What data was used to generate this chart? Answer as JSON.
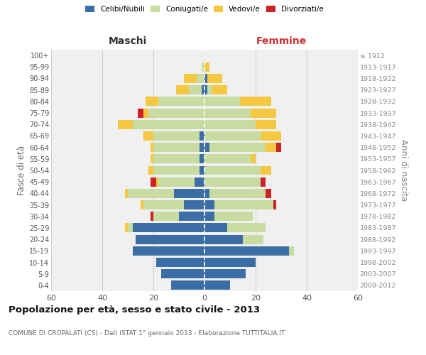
{
  "age_groups": [
    "0-4",
    "5-9",
    "10-14",
    "15-19",
    "20-24",
    "25-29",
    "30-34",
    "35-39",
    "40-44",
    "45-49",
    "50-54",
    "55-59",
    "60-64",
    "65-69",
    "70-74",
    "75-79",
    "80-84",
    "85-89",
    "90-94",
    "95-99",
    "100+"
  ],
  "birth_years": [
    "2008-2012",
    "2003-2007",
    "1998-2002",
    "1993-1997",
    "1988-1992",
    "1983-1987",
    "1978-1982",
    "1973-1977",
    "1968-1972",
    "1963-1967",
    "1958-1962",
    "1953-1957",
    "1948-1952",
    "1943-1947",
    "1938-1942",
    "1933-1937",
    "1928-1932",
    "1923-1927",
    "1918-1922",
    "1913-1917",
    "≤ 1912"
  ],
  "male": {
    "celibi": [
      13,
      17,
      19,
      28,
      27,
      28,
      10,
      8,
      12,
      4,
      2,
      2,
      2,
      2,
      0,
      0,
      0,
      1,
      0,
      0,
      0
    ],
    "coniugati": [
      0,
      0,
      0,
      0,
      0,
      2,
      10,
      16,
      18,
      14,
      18,
      18,
      18,
      18,
      28,
      22,
      18,
      5,
      3,
      1,
      0
    ],
    "vedovi": [
      0,
      0,
      0,
      0,
      0,
      1,
      0,
      1,
      1,
      1,
      2,
      1,
      1,
      4,
      6,
      2,
      5,
      5,
      5,
      0,
      0
    ],
    "divorziati": [
      0,
      0,
      0,
      0,
      0,
      0,
      1,
      0,
      0,
      2,
      0,
      0,
      0,
      0,
      0,
      2,
      0,
      0,
      0,
      0,
      0
    ]
  },
  "female": {
    "nubili": [
      10,
      16,
      20,
      33,
      15,
      9,
      4,
      4,
      2,
      0,
      0,
      0,
      2,
      0,
      0,
      0,
      0,
      1,
      1,
      0,
      0
    ],
    "coniugate": [
      0,
      0,
      0,
      2,
      8,
      15,
      15,
      23,
      22,
      22,
      22,
      18,
      22,
      22,
      20,
      18,
      14,
      2,
      0,
      0,
      0
    ],
    "vedove": [
      0,
      0,
      0,
      0,
      0,
      0,
      0,
      0,
      0,
      0,
      4,
      2,
      4,
      8,
      8,
      10,
      12,
      6,
      6,
      2,
      0
    ],
    "divorziate": [
      0,
      0,
      0,
      0,
      0,
      0,
      0,
      1,
      2,
      2,
      0,
      0,
      2,
      0,
      0,
      0,
      0,
      0,
      0,
      0,
      0
    ]
  },
  "colors": {
    "celibi": "#3a6ea5",
    "coniugati": "#c8dba0",
    "vedovi": "#f5c842",
    "divorziati": "#cc2222"
  },
  "title": "Popolazione per età, sesso e stato civile - 2013",
  "subtitle": "COMUNE DI CROPALATI (CS) - Dati ISTAT 1° gennaio 2013 - Elaborazione TUTTITALIA.IT",
  "xlabel_left": "Maschi",
  "xlabel_right": "Femmine",
  "ylabel_left": "Fasce di età",
  "ylabel_right": "Anni di nascita",
  "xlim": 60,
  "bg_color": "#ffffff",
  "plot_bg": "#f0f0f0",
  "grid_color": "#cccccc"
}
